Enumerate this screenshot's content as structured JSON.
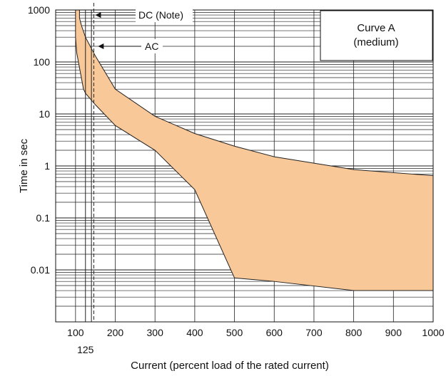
{
  "chart_data": {
    "type": "area",
    "title": "",
    "xlabel": "Current (percent load of the rated current)",
    "ylabel": "Time in sec",
    "yscale": "log",
    "xlim": [
      50,
      1000
    ],
    "ylim": [
      0.001,
      1000
    ],
    "grid": true,
    "x_ticks": [
      100,
      200,
      300,
      400,
      500,
      600,
      700,
      800,
      900,
      1000
    ],
    "x_tick_labels": [
      "100",
      "200",
      "300",
      "400",
      "500",
      "600",
      "700",
      "800",
      "900",
      "1000"
    ],
    "extra_x_tick": {
      "value": 125,
      "label": "125"
    },
    "y_ticks": [
      1000,
      100,
      10,
      1,
      0.1,
      0.01
    ],
    "y_tick_labels": [
      "1000",
      "100",
      "10",
      "1",
      "0.1",
      "0.01"
    ],
    "legend_box": {
      "line1": "Curve A",
      "line2": "(medium)",
      "placement": "top-right"
    },
    "series": [
      {
        "name": "Curve A (medium) tripping band",
        "color": "#f8c898",
        "upper_x": [
          110,
          110,
          115,
          125,
          150,
          200,
          300,
          400,
          500,
          600,
          800,
          1000
        ],
        "upper_y": [
          1000,
          700,
          500,
          300,
          130,
          30,
          9,
          4.2,
          2.4,
          1.5,
          0.85,
          0.65
        ],
        "lower_x": [
          100,
          100,
          103,
          120,
          125,
          150,
          200,
          300,
          400,
          500,
          600,
          800,
          1000
        ],
        "lower_y": [
          1000,
          300,
          150,
          30,
          25,
          15,
          6,
          2,
          0.35,
          0.007,
          0.006,
          0.004,
          0.004
        ]
      }
    ],
    "annotations": [
      {
        "text": "DC (Note)",
        "x": 144,
        "y": 800
      },
      {
        "text": "AC",
        "x": 153,
        "y": 200
      }
    ],
    "vertical_lines": [
      125,
      140,
      146
    ]
  }
}
